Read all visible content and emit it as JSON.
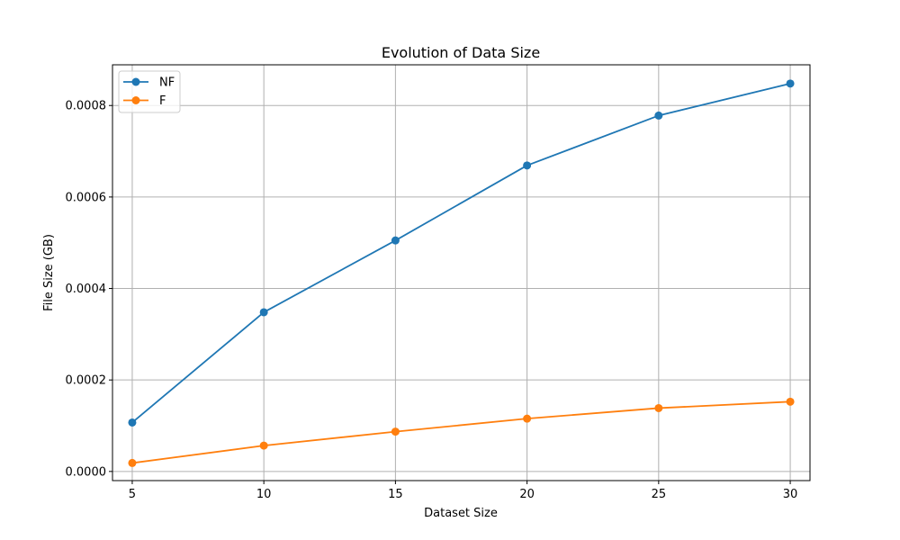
{
  "chart_data": {
    "type": "line",
    "title": "Evolution of Data Size",
    "xlabel": "Dataset Size",
    "ylabel": "File Size (GB)",
    "x": [
      5,
      10,
      15,
      20,
      25,
      30
    ],
    "x_ticks": [
      "5",
      "10",
      "15",
      "20",
      "25",
      "30"
    ],
    "y_ticks": [
      "0.0000",
      "0.0002",
      "0.0004",
      "0.0006",
      "0.0008"
    ],
    "y_tick_values": [
      0,
      0.0002,
      0.0004,
      0.0006,
      0.0008
    ],
    "xlim": [
      4.25,
      30.75
    ],
    "ylim": [
      -2e-05,
      0.000889
    ],
    "grid": true,
    "legend_position": "top-left",
    "series": [
      {
        "name": "NF",
        "color": "#1f77b4",
        "values": [
          0.000107,
          0.000348,
          0.000505,
          0.000669,
          0.000778,
          0.000848
        ]
      },
      {
        "name": "F",
        "color": "#ff7f0e",
        "values": [
          1.85e-05,
          5.65e-05,
          8.7e-05,
          0.0001155,
          0.0001385,
          0.0001525
        ]
      }
    ]
  }
}
